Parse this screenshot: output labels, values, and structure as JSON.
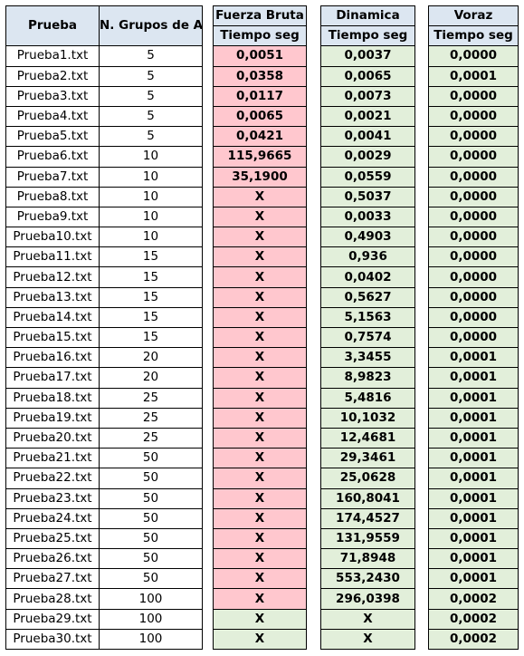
{
  "headers": {
    "prueba": "Prueba",
    "grupos": "N. Grupos de Agentes",
    "fuerza_bruta": "Fuerza Bruta",
    "dinamica": "Dinamica",
    "voraz": "Voraz",
    "tiempo": "Tiempo seg"
  },
  "rows": [
    {
      "file": "Prueba1.txt",
      "groups": "5",
      "fb": "0,0051",
      "din": "0,0037",
      "vor": "0,0000"
    },
    {
      "file": "Prueba2.txt",
      "groups": "5",
      "fb": "0,0358",
      "din": "0,0065",
      "vor": "0,0001"
    },
    {
      "file": "Prueba3.txt",
      "groups": "5",
      "fb": "0,0117",
      "din": "0,0073",
      "vor": "0,0000"
    },
    {
      "file": "Prueba4.txt",
      "groups": "5",
      "fb": "0,0065",
      "din": "0,0021",
      "vor": "0,0000"
    },
    {
      "file": "Prueba5.txt",
      "groups": "5",
      "fb": "0,0421",
      "din": "0,0041",
      "vor": "0,0000"
    },
    {
      "file": "Prueba6.txt",
      "groups": "10",
      "fb": "115,9665",
      "din": "0,0029",
      "vor": "0,0000"
    },
    {
      "file": "Prueba7.txt",
      "groups": "10",
      "fb": "35,1900",
      "din": "0,0559",
      "vor": "0,0000"
    },
    {
      "file": "Prueba8.txt",
      "groups": "10",
      "fb": "X",
      "din": "0,5037",
      "vor": "0,0000"
    },
    {
      "file": "Prueba9.txt",
      "groups": "10",
      "fb": "X",
      "din": "0,0033",
      "vor": "0,0000"
    },
    {
      "file": "Prueba10.txt",
      "groups": "10",
      "fb": "X",
      "din": "0,4903",
      "vor": "0,0000"
    },
    {
      "file": "Prueba11.txt",
      "groups": "15",
      "fb": "X",
      "din": "0,936",
      "vor": "0,0000"
    },
    {
      "file": "Prueba12.txt",
      "groups": "15",
      "fb": "X",
      "din": "0,0402",
      "vor": "0,0000"
    },
    {
      "file": "Prueba13.txt",
      "groups": "15",
      "fb": "X",
      "din": "0,5627",
      "vor": "0,0000"
    },
    {
      "file": "Prueba14.txt",
      "groups": "15",
      "fb": "X",
      "din": "5,1563",
      "vor": "0,0000"
    },
    {
      "file": "Prueba15.txt",
      "groups": "15",
      "fb": "X",
      "din": "0,7574",
      "vor": "0,0000"
    },
    {
      "file": "Prueba16.txt",
      "groups": "20",
      "fb": "X",
      "din": "3,3455",
      "vor": "0,0001"
    },
    {
      "file": "Prueba17.txt",
      "groups": "20",
      "fb": "X",
      "din": "8,9823",
      "vor": "0,0001"
    },
    {
      "file": "Prueba18.txt",
      "groups": "25",
      "fb": "X",
      "din": "5,4816",
      "vor": "0,0001"
    },
    {
      "file": "Prueba19.txt",
      "groups": "25",
      "fb": "X",
      "din": "10,1032",
      "vor": "0,0001"
    },
    {
      "file": "Prueba20.txt",
      "groups": "25",
      "fb": "X",
      "din": "12,4681",
      "vor": "0,0001"
    },
    {
      "file": "Prueba21.txt",
      "groups": "50",
      "fb": "X",
      "din": "29,3461",
      "vor": "0,0001"
    },
    {
      "file": "Prueba22.txt",
      "groups": "50",
      "fb": "X",
      "din": "25,0628",
      "vor": "0,0001"
    },
    {
      "file": "Prueba23.txt",
      "groups": "50",
      "fb": "X",
      "din": "160,8041",
      "vor": "0,0001"
    },
    {
      "file": "Prueba24.txt",
      "groups": "50",
      "fb": "X",
      "din": "174,4527",
      "vor": "0,0001"
    },
    {
      "file": "Prueba25.txt",
      "groups": "50",
      "fb": "X",
      "din": "131,9559",
      "vor": "0,0001"
    },
    {
      "file": "Prueba26.txt",
      "groups": "50",
      "fb": "X",
      "din": "71,8948",
      "vor": "0,0001"
    },
    {
      "file": "Prueba27.txt",
      "groups": "50",
      "fb": "X",
      "din": "553,2430",
      "vor": "0,0001"
    },
    {
      "file": "Prueba28.txt",
      "groups": "100",
      "fb": "X",
      "din": "296,0398",
      "vor": "0,0002"
    },
    {
      "file": "Prueba29.txt",
      "groups": "100",
      "fb": "X",
      "din": "X",
      "vor": "0,0002"
    },
    {
      "file": "Prueba30.txt",
      "groups": "100",
      "fb": "X",
      "din": "X",
      "vor": "0,0002"
    }
  ],
  "fb_colors": [
    "pink",
    "pink",
    "pink",
    "pink",
    "pink",
    "pink",
    "pink",
    "pink",
    "pink",
    "pink",
    "pink",
    "pink",
    "pink",
    "pink",
    "pink",
    "pink",
    "pink",
    "pink",
    "pink",
    "pink",
    "pink",
    "pink",
    "pink",
    "pink",
    "pink",
    "pink",
    "pink",
    "pink",
    "green",
    "green"
  ],
  "din_colors": [
    "green",
    "green",
    "green",
    "green",
    "green",
    "green",
    "green",
    "green",
    "green",
    "green",
    "green",
    "green",
    "green",
    "green",
    "green",
    "green",
    "green",
    "green",
    "green",
    "green",
    "green",
    "green",
    "green",
    "green",
    "green",
    "green",
    "green",
    "green",
    "green",
    "green"
  ],
  "vor_colors": [
    "green",
    "green",
    "green",
    "green",
    "green",
    "green",
    "green",
    "green",
    "green",
    "green",
    "green",
    "green",
    "green",
    "green",
    "green",
    "green",
    "green",
    "green",
    "green",
    "green",
    "green",
    "green",
    "green",
    "green",
    "green",
    "green",
    "green",
    "green",
    "green",
    "green"
  ],
  "palette": {
    "header": "#dce6f1",
    "pink": "#ffc7ce",
    "green": "#e2efda"
  }
}
